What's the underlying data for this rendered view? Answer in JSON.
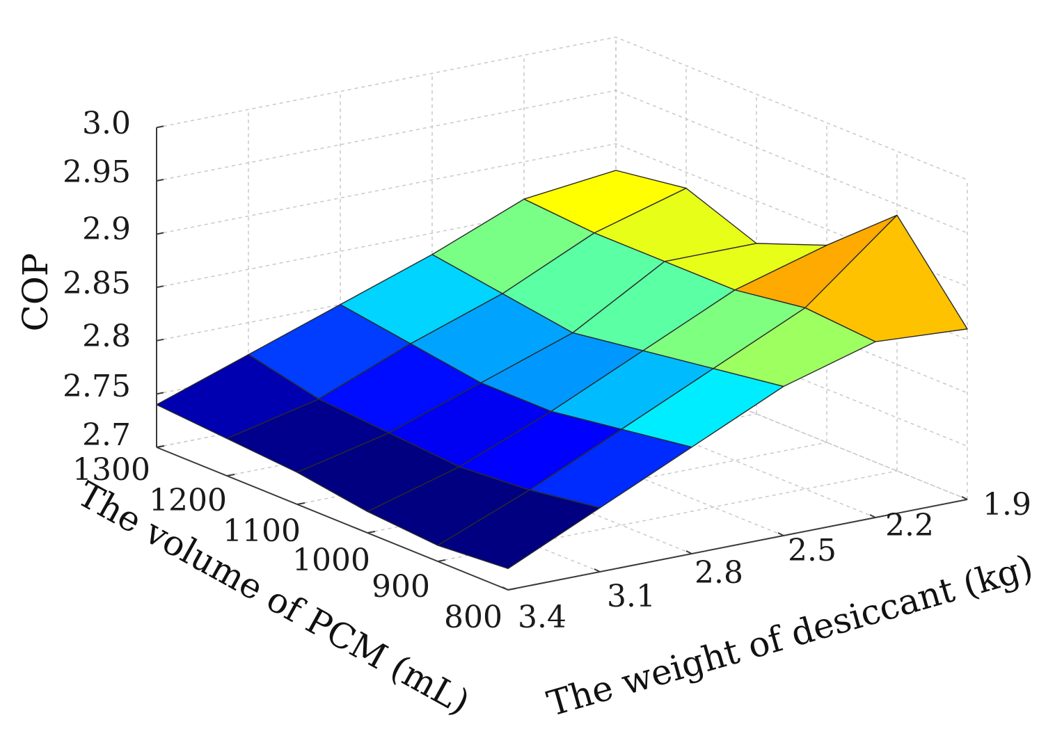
{
  "chart_data": {
    "type": "surface3d",
    "title": "",
    "x_axis": {
      "label": "The volume of PCM (mL)",
      "ticks": [
        "1300",
        "1200",
        "1100",
        "1000",
        "900",
        "800"
      ],
      "values": [
        1300,
        1200,
        1100,
        1000,
        900,
        800
      ]
    },
    "y_axis": {
      "label": "The weight of desiccant (kg)",
      "ticks": [
        "3.4",
        "3.1",
        "2.8",
        "2.5",
        "2.2",
        "1.9"
      ],
      "values": [
        3.4,
        3.1,
        2.8,
        2.5,
        2.2,
        1.9
      ]
    },
    "z_axis": {
      "label": "COP",
      "ticks": [
        "2.7",
        "2.75",
        "2.8",
        "2.85",
        "2.9",
        "2.95",
        "3.0"
      ],
      "range": [
        2.7,
        3.0
      ]
    },
    "grid": true,
    "colormap": "jet",
    "color_range": [
      2.74,
      2.95
    ],
    "z_values": [
      [
        2.74,
        2.77,
        2.8,
        2.83,
        2.865,
        2.875
      ],
      [
        2.735,
        2.755,
        2.79,
        2.82,
        2.86,
        2.885
      ],
      [
        2.73,
        2.75,
        2.78,
        2.81,
        2.86,
        2.86
      ],
      [
        2.72,
        2.745,
        2.78,
        2.82,
        2.86,
        2.885
      ],
      [
        2.715,
        2.75,
        2.79,
        2.83,
        2.87,
        2.94
      ],
      [
        2.72,
        2.76,
        2.8,
        2.84,
        2.865,
        2.86
      ]
    ]
  }
}
